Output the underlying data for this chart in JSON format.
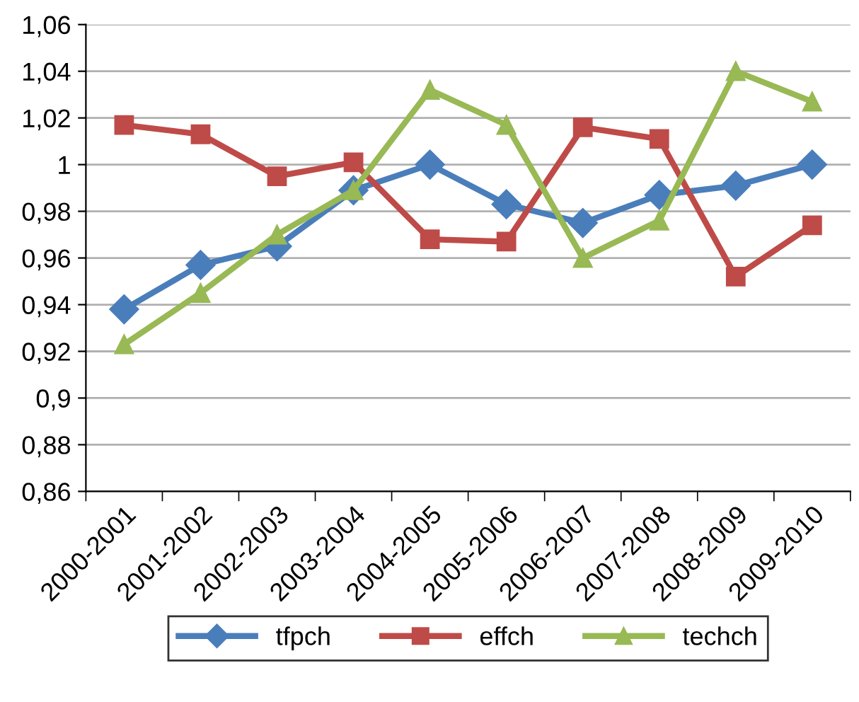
{
  "chart_data": {
    "type": "line",
    "categories": [
      "2000-2001",
      "2001-2002",
      "2002-2003",
      "2003-2004",
      "2004-2005",
      "2005-2006",
      "2006-2007",
      "2007-2008",
      "2008-2009",
      "2009-2010"
    ],
    "series": [
      {
        "name": "tfpch",
        "color": "#4a7ebb",
        "marker": "diamond",
        "values": [
          0.938,
          0.957,
          0.965,
          0.989,
          1.0,
          0.983,
          0.975,
          0.987,
          0.991,
          1.0
        ]
      },
      {
        "name": "effch",
        "color": "#be4b48",
        "marker": "square",
        "values": [
          1.017,
          1.013,
          0.995,
          1.001,
          0.968,
          0.967,
          1.016,
          1.011,
          0.952,
          0.974
        ]
      },
      {
        "name": "techch",
        "color": "#98b954",
        "marker": "triangle",
        "values": [
          0.923,
          0.945,
          0.97,
          0.989,
          1.032,
          1.017,
          0.96,
          0.976,
          1.04,
          1.027
        ]
      }
    ],
    "ylim": [
      0.86,
      1.06
    ],
    "yticks": [
      {
        "value": 0.86,
        "label": "0,86"
      },
      {
        "value": 0.88,
        "label": "0,88"
      },
      {
        "value": 0.9,
        "label": "0,9"
      },
      {
        "value": 0.92,
        "label": "0,92"
      },
      {
        "value": 0.94,
        "label": "0,94"
      },
      {
        "value": 0.96,
        "label": "0,96"
      },
      {
        "value": 0.98,
        "label": "0,98"
      },
      {
        "value": 1.0,
        "label": "1"
      },
      {
        "value": 1.02,
        "label": "1,02"
      },
      {
        "value": 1.04,
        "label": "1,04"
      },
      {
        "value": 1.06,
        "label": "1,06"
      }
    ],
    "grid": "y",
    "legend": "bottom",
    "line_style": "solid"
  }
}
